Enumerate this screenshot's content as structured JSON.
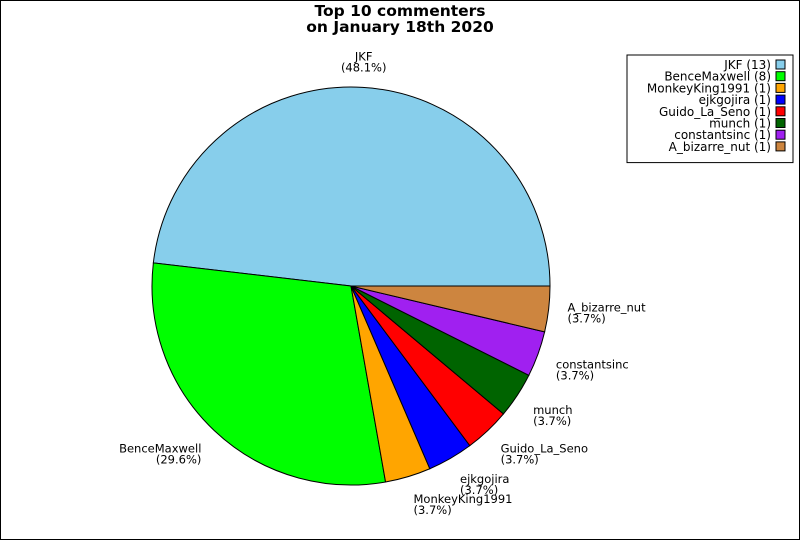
{
  "chart_data": {
    "type": "pie",
    "title": "Top 10 commenters\non January 18th 2020",
    "title_lines": [
      "Top 10 commenters",
      "on January 18th 2020"
    ],
    "slices": [
      {
        "name": "JKF",
        "value": 13,
        "percent": "48.1%",
        "color": "#87CEEB",
        "legend": "JKF (13)"
      },
      {
        "name": "BenceMaxwell",
        "value": 8,
        "percent": "29.6%",
        "color": "#00FF00",
        "legend": "BenceMaxwell (8)"
      },
      {
        "name": "MonkeyKing1991",
        "value": 1,
        "percent": "3.7%",
        "color": "#FFA500",
        "legend": "MonkeyKing1991 (1)"
      },
      {
        "name": "ejkgojira",
        "value": 1,
        "percent": "3.7%",
        "color": "#0000FF",
        "legend": "ejkgojira (1)"
      },
      {
        "name": "Guido_La_Seno",
        "value": 1,
        "percent": "3.7%",
        "color": "#FF0000",
        "legend": "Guido_La_Seno (1)"
      },
      {
        "name": "munch",
        "value": 1,
        "percent": "3.7%",
        "color": "#006400",
        "legend": "munch (1)"
      },
      {
        "name": "constantsinc",
        "value": 1,
        "percent": "3.7%",
        "color": "#A020F0",
        "legend": "constantsinc (1)"
      },
      {
        "name": "A_bizarre_nut",
        "value": 1,
        "percent": "3.7%",
        "color": "#CD853F",
        "legend": "A_bizarre_nut (1)"
      }
    ],
    "legend_position": "top-right",
    "start_angle_deg": 0,
    "direction": "counterclockwise"
  }
}
